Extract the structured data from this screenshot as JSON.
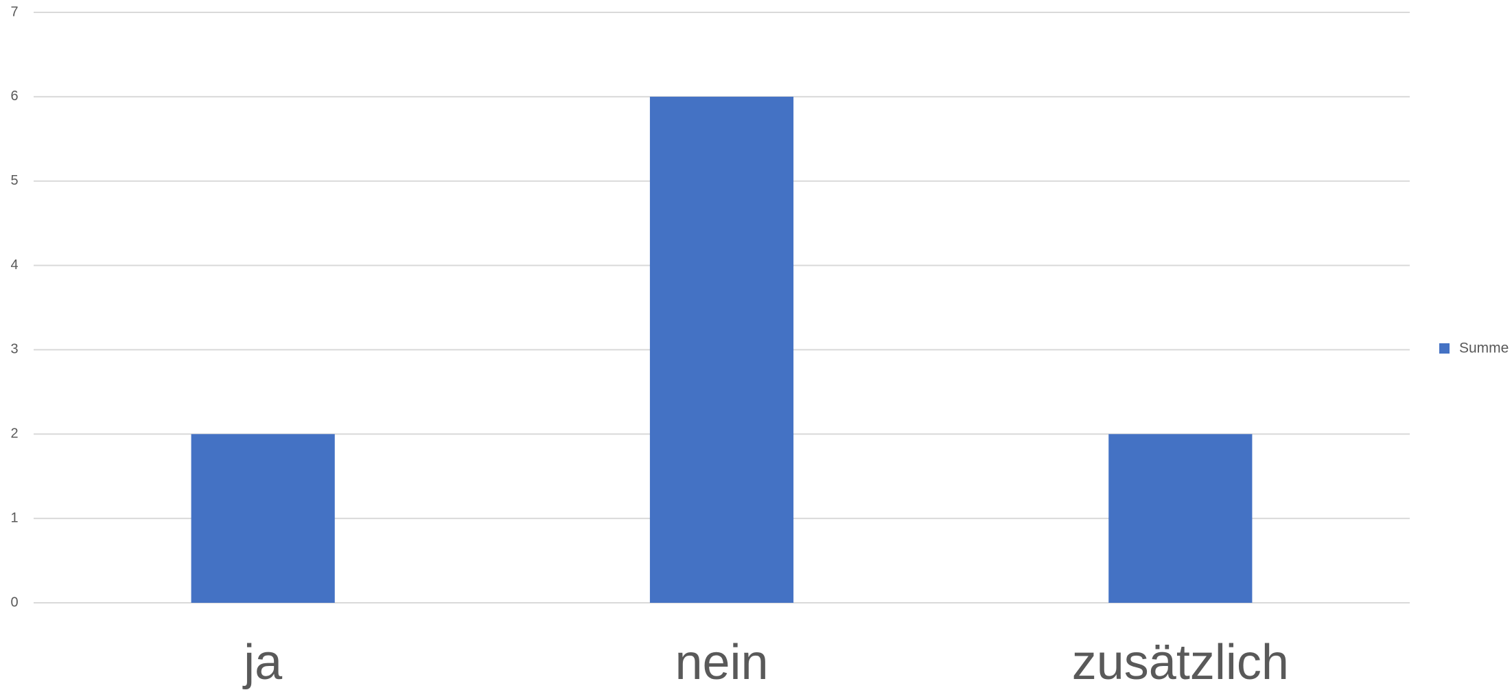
{
  "chart_data": {
    "type": "bar",
    "categories": [
      "ja",
      "nein",
      "zusätzlich"
    ],
    "series": [
      {
        "name": "Summe",
        "color": "#4472c4",
        "values": [
          2,
          6,
          2
        ]
      }
    ],
    "ylim": [
      0,
      7
    ],
    "yticks": [
      0,
      1,
      2,
      3,
      4,
      5,
      6,
      7
    ],
    "grid": true,
    "legend": "right"
  }
}
